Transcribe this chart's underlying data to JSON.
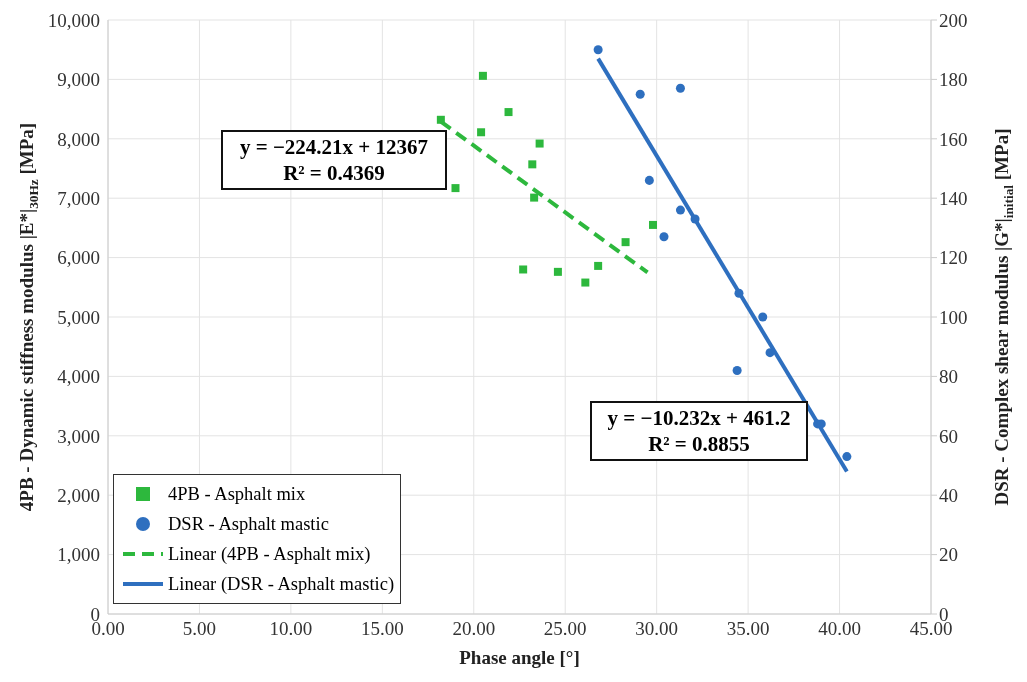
{
  "chart_data": {
    "type": "scatter",
    "xlabel": "Phase angle [°]",
    "ylabel": "4PB - Dynamic stiffness modulus |E*|$_{30Hz}$ [MPa]",
    "y2label": "DSR - Complex shear modulus |G*|$_{initial}$ [MPa]",
    "xlim": [
      0,
      45
    ],
    "xticks": [
      {
        "value": 0,
        "label": "0.00"
      },
      {
        "value": 5,
        "label": "5.00"
      },
      {
        "value": 10,
        "label": "10.00"
      },
      {
        "value": 15,
        "label": "15.00"
      },
      {
        "value": 20,
        "label": "20.00"
      },
      {
        "value": 25,
        "label": "25.00"
      },
      {
        "value": 30,
        "label": "30.00"
      },
      {
        "value": 35,
        "label": "35.00"
      },
      {
        "value": 40,
        "label": "40.00"
      },
      {
        "value": 45,
        "label": "45.00"
      }
    ],
    "ylim": [
      0,
      10000
    ],
    "yticks": [
      0,
      {
        "value": 1000,
        "label": "1,000"
      },
      {
        "value": 2000,
        "label": "2,000"
      },
      {
        "value": 3000,
        "label": "3,000"
      },
      {
        "value": 4000,
        "label": "4,000"
      },
      {
        "value": 5000,
        "label": "5,000"
      },
      {
        "value": 6000,
        "label": "6,000"
      },
      {
        "value": 7000,
        "label": "7,000"
      },
      {
        "value": 8000,
        "label": "8,000"
      },
      {
        "value": 9000,
        "label": "9,000"
      },
      {
        "value": 10000,
        "label": "10,000"
      }
    ],
    "y2lim": [
      0,
      200
    ],
    "y2ticks": [
      0,
      20,
      40,
      60,
      80,
      100,
      120,
      140,
      160,
      180,
      200
    ],
    "grid": true,
    "legend": "bottom left",
    "annotations": [
      "y = −224.21x + 12367\nR² = 0.4369",
      "y = −10.232x + 461.2\nR² = 0.8855"
    ],
    "series": [
      {
        "name": "4PB - Asphalt mix",
        "marker": "square",
        "color": "#2db83d",
        "x": [
          18.2,
          20.5,
          21.9,
          20.4,
          23.6,
          23.2,
          19.0,
          23.3,
          29.8,
          28.3,
          22.7,
          24.6,
          26.8,
          26.1
        ],
        "values": [
          8320,
          9060,
          8450,
          8110,
          7920,
          7570,
          7170,
          7010,
          6550,
          6260,
          5800,
          5760,
          5860,
          5580
        ]
      },
      {
        "name": "DSR - Asphalt mastic",
        "marker": "circle",
        "axis": "y2",
        "color": "#2e6fbf",
        "x": [
          26.8,
          29.1,
          31.3,
          29.6,
          30.4,
          31.3,
          32.1,
          34.5,
          35.8,
          36.2,
          34.4,
          38.8,
          39.0,
          40.4
        ],
        "values": [
          190,
          175,
          177,
          146,
          127,
          136,
          133,
          108,
          100,
          88,
          82,
          64,
          64,
          53
        ]
      },
      {
        "name": "Linear (4PB - Asphalt mix)",
        "type": "line",
        "marker": "none",
        "line_style": "dashed",
        "color": "#2db83d",
        "x": [
          18.2,
          29.5
        ],
        "values": [
          8290,
          5750
        ]
      },
      {
        "name": "Linear (DSR - Asphalt mastic)",
        "type": "line",
        "marker": "none",
        "line_style": "solid",
        "axis": "y2",
        "color": "#2e6fbf",
        "x": [
          26.8,
          40.4
        ],
        "values": [
          187,
          48
        ]
      }
    ]
  }
}
